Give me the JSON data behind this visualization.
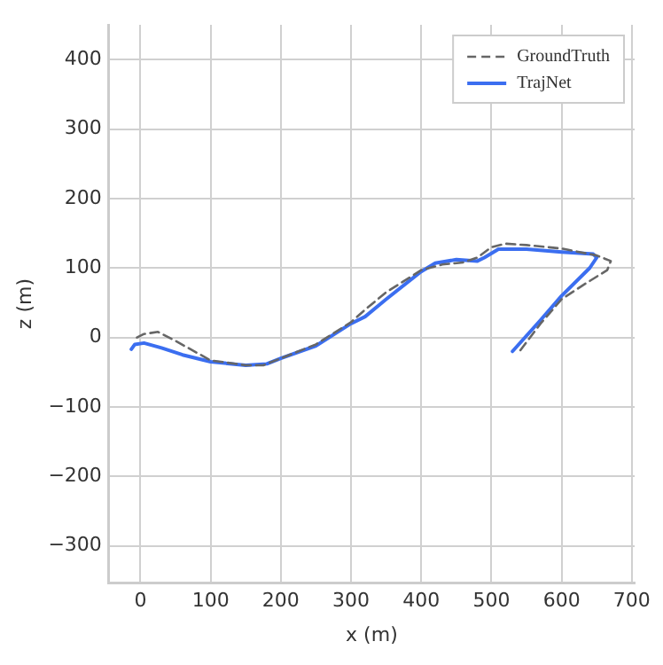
{
  "chart_data": {
    "type": "line",
    "xlabel": "x (m)",
    "ylabel": "z (m)",
    "xlim": [
      -45,
      704
    ],
    "ylim": [
      -353,
      450
    ],
    "xticks": [
      0,
      100,
      200,
      300,
      400,
      500,
      600,
      700
    ],
    "yticks": [
      -300,
      -200,
      -100,
      0,
      100,
      200,
      300,
      400
    ],
    "grid": true,
    "legend": "top right",
    "marker": "none",
    "series": [
      {
        "name": "GroundTruth",
        "color": "#666666",
        "line_style": "dashed",
        "x": [
          -5,
          5,
          25,
          50,
          100,
          150,
          175,
          200,
          250,
          300,
          320,
          350,
          400,
          430,
          460,
          480,
          500,
          520,
          550,
          600,
          650,
          670,
          665,
          630,
          600,
          570,
          540
        ],
        "values": [
          0,
          5,
          8,
          -5,
          -33,
          -40,
          -40,
          -30,
          -10,
          22,
          40,
          65,
          97,
          105,
          108,
          115,
          130,
          135,
          133,
          128,
          118,
          110,
          97,
          75,
          55,
          20,
          -20
        ]
      },
      {
        "name": "TrajNet",
        "color": "#3b6ef0",
        "line_style": "solid",
        "x": [
          -13,
          -8,
          5,
          30,
          60,
          100,
          150,
          180,
          200,
          250,
          300,
          320,
          350,
          400,
          420,
          450,
          480,
          490,
          510,
          550,
          600,
          645,
          650,
          640,
          600,
          570,
          530
        ],
        "values": [
          -17,
          -10,
          -8,
          -15,
          -25,
          -35,
          -40,
          -38,
          -30,
          -12,
          20,
          30,
          55,
          95,
          107,
          112,
          110,
          115,
          127,
          127,
          123,
          120,
          115,
          100,
          60,
          25,
          -20
        ]
      }
    ]
  }
}
